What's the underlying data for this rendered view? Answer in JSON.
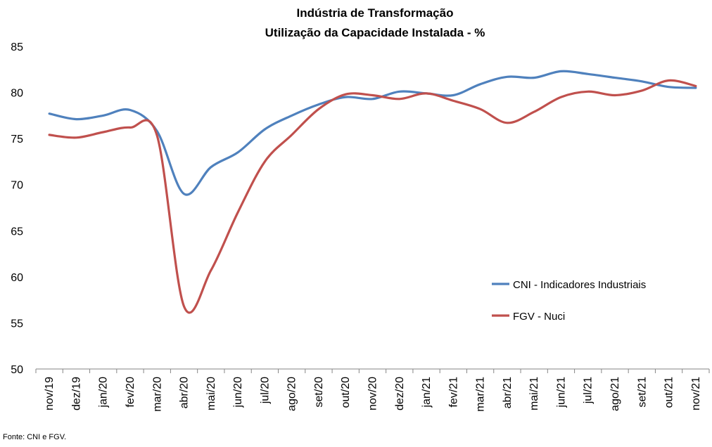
{
  "chart_data": {
    "type": "line",
    "title": "Indústria de Transformação",
    "subtitle": "Utilização da Capacidade Instalada - %",
    "categories": [
      "nov/19",
      "dez/19",
      "jan/20",
      "fev/20",
      "mar/20",
      "abr/20",
      "mai/20",
      "jun/20",
      "jul/20",
      "ago/20",
      "set/20",
      "out/20",
      "nov/20",
      "dez/20",
      "jan/21",
      "fev/21",
      "mar/21",
      "abr/21",
      "mai/21",
      "jun/21",
      "jul/21",
      "ago/21",
      "set/21",
      "out/21",
      "nov/21"
    ],
    "ylim": [
      50,
      85
    ],
    "yticks": [
      50,
      55,
      60,
      65,
      70,
      75,
      80,
      85
    ],
    "grid": false,
    "legend_position": "right",
    "series": [
      {
        "name": "CNI - Indicadores Industriais",
        "color": "#4F81BD",
        "values": [
          77.7,
          77.1,
          77.5,
          78.1,
          75.8,
          69.0,
          71.9,
          73.5,
          76.0,
          77.5,
          78.7,
          79.5,
          79.3,
          80.1,
          79.9,
          79.7,
          80.9,
          81.7,
          81.6,
          82.3,
          82.0,
          81.6,
          81.2,
          80.6,
          80.5
        ]
      },
      {
        "name": "FGV - Nuci",
        "color": "#C0504D",
        "values": [
          75.4,
          75.1,
          75.7,
          76.2,
          75.3,
          56.8,
          60.7,
          67.0,
          72.5,
          75.4,
          78.2,
          79.8,
          79.7,
          79.3,
          79.9,
          79.1,
          78.2,
          76.7,
          77.9,
          79.5,
          80.1,
          79.7,
          80.2,
          81.3,
          80.7
        ]
      }
    ]
  },
  "source": "Fonte: CNI e FGV."
}
